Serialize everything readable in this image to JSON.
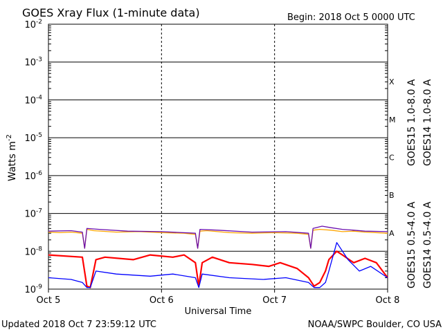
{
  "header": {
    "title": "GOES Xray Flux (1-minute data)",
    "begin": "Begin:  2018 Oct 5 0000 UTC"
  },
  "footer": {
    "updated": "Updated 2018 Oct  7 23:59:12 UTC",
    "credit": "NOAA/SWPC Boulder, CO USA"
  },
  "chart_data": {
    "type": "line",
    "title": "GOES Xray Flux (1-minute data)",
    "xlabel": "Universal Time",
    "ylabel": "Watts m-2",
    "ylabel_main": "Watts m",
    "ylabel_sup": "-2",
    "yscale": "log",
    "ylim": [
      1e-09,
      0.01
    ],
    "y_ticks": [
      {
        "base": "10",
        "exp": "-2"
      },
      {
        "base": "10",
        "exp": "-3"
      },
      {
        "base": "10",
        "exp": "-4"
      },
      {
        "base": "10",
        "exp": "-5"
      },
      {
        "base": "10",
        "exp": "-6"
      },
      {
        "base": "10",
        "exp": "-7"
      },
      {
        "base": "10",
        "exp": "-8"
      },
      {
        "base": "10",
        "exp": "-9"
      }
    ],
    "x_ticks": [
      "Oct 5",
      "Oct 6",
      "Oct 7",
      "Oct 8"
    ],
    "xlim_days": [
      0,
      3
    ],
    "flare_classes": [
      "X",
      "M",
      "C",
      "B",
      "A"
    ],
    "grid": true,
    "series": [
      {
        "name": "GOES15 1.0-8.0 A",
        "color": "#ff0000",
        "band": "long",
        "x": [
          0.0,
          0.3,
          0.34,
          0.37,
          0.42,
          0.5,
          0.75,
          0.9,
          1.1,
          1.2,
          1.3,
          1.33,
          1.36,
          1.45,
          1.6,
          1.8,
          1.95,
          2.05,
          2.2,
          2.3,
          2.35,
          2.4,
          2.45,
          2.48,
          2.55,
          2.6,
          2.7,
          2.8,
          2.9,
          3.0
        ],
        "y": [
          8e-09,
          7e-09,
          1.2e-09,
          1.1e-09,
          6e-09,
          7e-09,
          6e-09,
          8e-09,
          7e-09,
          8e-09,
          5e-09,
          1.2e-09,
          5e-09,
          7e-09,
          5e-09,
          4.5e-09,
          4e-09,
          5e-09,
          3.5e-09,
          2e-09,
          1.2e-09,
          1.5e-09,
          3e-09,
          6e-09,
          1e-08,
          8e-09,
          5e-09,
          6.5e-09,
          5e-09,
          2e-09
        ]
      },
      {
        "name": "GOES14 1.0-8.0 A",
        "color": "#ffa500",
        "band": "long",
        "x": [
          0.0,
          0.1,
          0.2,
          0.3,
          0.32,
          0.34,
          0.4,
          0.6,
          0.8,
          1.0,
          1.2,
          1.3,
          1.32,
          1.34,
          1.4,
          1.6,
          1.8,
          2.0,
          2.2,
          2.3,
          2.32,
          2.34,
          2.4,
          2.5,
          2.6,
          2.7,
          2.8,
          3.0
        ],
        "y": [
          3.2e-08,
          3.1e-08,
          3.2e-08,
          3e-08,
          1.2e-08,
          3.8e-08,
          3.5e-08,
          3.2e-08,
          3.3e-08,
          3.1e-08,
          3e-08,
          2.8e-08,
          1.2e-08,
          3.4e-08,
          3.5e-08,
          3.1e-08,
          3e-08,
          3.1e-08,
          3e-08,
          2.8e-08,
          1.2e-08,
          3.6e-08,
          3.8e-08,
          3.6e-08,
          3.3e-08,
          3.4e-08,
          3.2e-08,
          3e-08
        ]
      },
      {
        "name": "GOES15 0.5-4.0 A",
        "color": "#0000ff",
        "band": "short",
        "x": [
          0.0,
          0.2,
          0.3,
          0.34,
          0.37,
          0.42,
          0.6,
          0.9,
          1.1,
          1.3,
          1.33,
          1.36,
          1.6,
          1.9,
          2.1,
          2.3,
          2.35,
          2.4,
          2.45,
          2.48,
          2.55,
          2.65,
          2.75,
          2.85,
          3.0
        ],
        "y": [
          2e-09,
          1.8e-09,
          1.5e-09,
          1.1e-09,
          1.1e-09,
          3e-09,
          2.5e-09,
          2.2e-09,
          2.5e-09,
          2e-09,
          1.1e-09,
          2.5e-09,
          2e-09,
          1.8e-09,
          2e-09,
          1.5e-09,
          1.1e-09,
          1.1e-09,
          1.5e-09,
          3e-09,
          1.7e-08,
          6e-09,
          3e-09,
          4e-09,
          2e-09
        ]
      },
      {
        "name": "GOES14 0.5-4.0 A",
        "color": "#6a0dad",
        "band": "short",
        "x": [
          0.0,
          0.2,
          0.3,
          0.32,
          0.34,
          0.45,
          0.7,
          1.0,
          1.3,
          1.32,
          1.34,
          1.5,
          1.8,
          2.1,
          2.3,
          2.32,
          2.34,
          2.42,
          2.5,
          2.6,
          2.7,
          2.8,
          3.0
        ],
        "y": [
          3.4e-08,
          3.5e-08,
          3.2e-08,
          1.2e-08,
          4e-08,
          3.8e-08,
          3.4e-08,
          3.3e-08,
          3e-08,
          1.2e-08,
          3.8e-08,
          3.6e-08,
          3.2e-08,
          3.3e-08,
          3e-08,
          1.2e-08,
          4e-08,
          4.6e-08,
          4.2e-08,
          3.8e-08,
          3.6e-08,
          3.4e-08,
          3.3e-08
        ]
      }
    ]
  }
}
